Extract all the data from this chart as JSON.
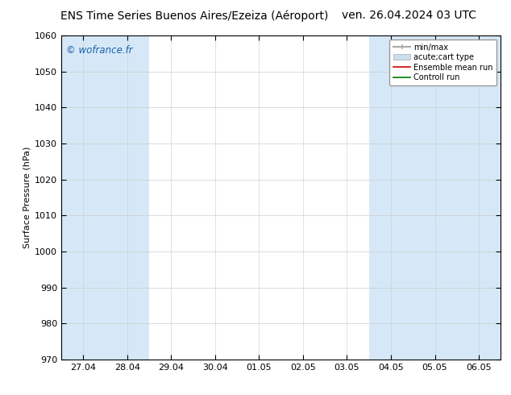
{
  "title_left": "ENS Time Series Buenos Aires/Ezeiza (Aéroport)",
  "title_right": "ven. 26.04.2024 03 UTC",
  "ylabel": "Surface Pressure (hPa)",
  "watermark": "© wofrance.fr",
  "ylim": [
    970,
    1060
  ],
  "yticks": [
    970,
    980,
    990,
    1000,
    1010,
    1020,
    1030,
    1040,
    1050,
    1060
  ],
  "xtick_labels": [
    "27.04",
    "28.04",
    "29.04",
    "30.04",
    "01.05",
    "02.05",
    "03.05",
    "04.05",
    "05.05",
    "06.05"
  ],
  "xtick_positions": [
    0,
    1,
    2,
    3,
    4,
    5,
    6,
    7,
    8,
    9
  ],
  "xlim": [
    -0.5,
    9.5
  ],
  "shaded_bands": [
    0,
    1,
    7,
    8,
    9
  ],
  "band_color": "#d6e8f7",
  "bg_color": "#ffffff",
  "plot_bg_color": "#ffffff",
  "legend_entries": [
    {
      "label": "min/max",
      "color": "#aaaaaa",
      "lw": 1.5,
      "ls": "-"
    },
    {
      "label": "acute;cart type",
      "color": "#c8dff0",
      "lw": 6,
      "ls": "-"
    },
    {
      "label": "Ensemble mean run",
      "color": "#cc0000",
      "lw": 1.2,
      "ls": "-"
    },
    {
      "label": "Controll run",
      "color": "#007700",
      "lw": 1.2,
      "ls": "-"
    }
  ],
  "title_fontsize": 10,
  "axis_fontsize": 8,
  "tick_fontsize": 8,
  "watermark_color": "#1a5fa8",
  "watermark_fontsize": 8.5
}
